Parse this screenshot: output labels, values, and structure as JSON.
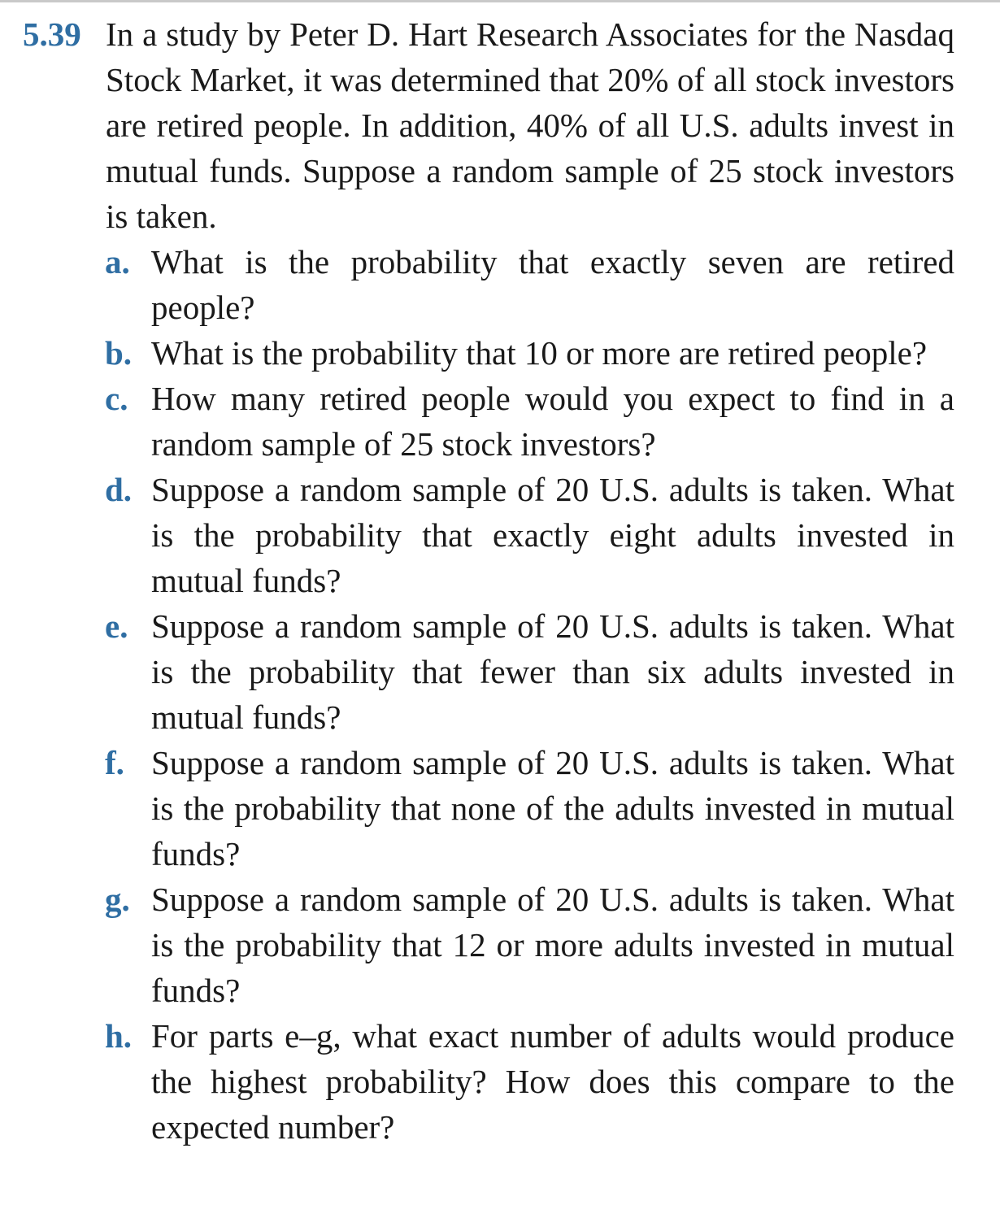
{
  "problem": {
    "number": "5.39",
    "stem": "In a study by Peter D. Hart Research Associates for the Nasdaq Stock Market, it was determined that 20% of all stock investors are retired people. In addition, 40% of all U.S. adults invest in mutual funds. Suppose a random sample of 25 stock investors is taken.",
    "parts": [
      {
        "letter": "a.",
        "text": "What is the probability that exactly seven are retired people?"
      },
      {
        "letter": "b.",
        "text": "What is the probability that 10 or more are retired people?"
      },
      {
        "letter": "c.",
        "text": "How many retired people would you expect to find in a random sample of 25 stock investors?"
      },
      {
        "letter": "d.",
        "text": "Suppose a random sample of 20 U.S. adults is taken. What is the probability that exactly eight adults invested in mutual funds?"
      },
      {
        "letter": "e.",
        "text": "Suppose a random sample of 20 U.S. adults is taken. What is the probability that fewer than six adults invested in mutual funds?"
      },
      {
        "letter": "f.",
        "text": "Suppose a random sample of 20 U.S. adults is taken. What is the probability that none of the adults invested in mutual funds?"
      },
      {
        "letter": "g.",
        "text": "Suppose a random sample of 20 U.S. adults is taken. What is the probability that 12 or more adults invested in mutual funds?"
      },
      {
        "letter": "h.",
        "text": "For parts e–g, what exact number of adults would produce the highest probability? How does this com­pare to the expected number?"
      }
    ]
  }
}
